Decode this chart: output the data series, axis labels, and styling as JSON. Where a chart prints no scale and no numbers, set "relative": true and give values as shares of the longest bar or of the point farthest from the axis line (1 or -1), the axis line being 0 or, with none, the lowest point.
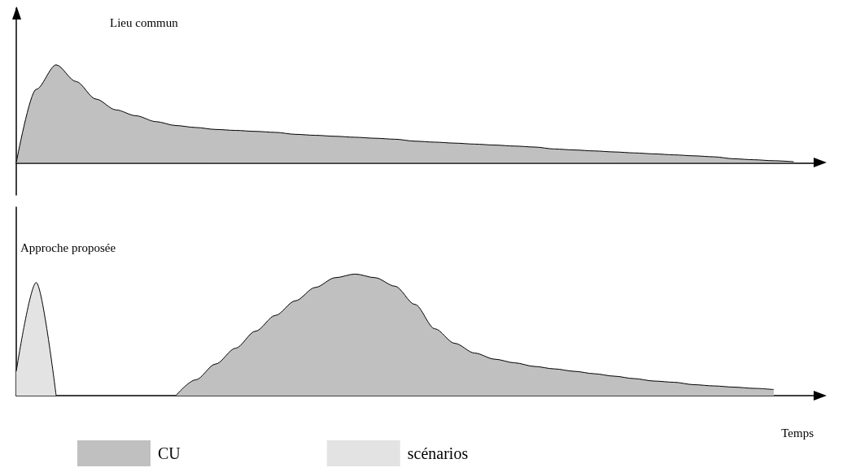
{
  "chart_data": [
    {
      "type": "area",
      "title": "Lieu commun",
      "relative": true,
      "categories": [
        null,
        null,
        null,
        null,
        null,
        null,
        null,
        null,
        null,
        null,
        null,
        null,
        null,
        null,
        null,
        null,
        null,
        null,
        null,
        null,
        null,
        null,
        null,
        null,
        null,
        null,
        null,
        null,
        null,
        null,
        null,
        null,
        null,
        null,
        null,
        null,
        null,
        null,
        null,
        null,
        null
      ],
      "series": [
        {
          "color": "#c0c0c0",
          "values": [
            0,
            0.75,
            1,
            0.83,
            0.65,
            0.54,
            0.48,
            0.42,
            0.38,
            0.36,
            0.34,
            0.33,
            0.32,
            0.31,
            0.29,
            0.28,
            0.27,
            0.26,
            0.25,
            0.24,
            0.22,
            0.21,
            0.2,
            0.19,
            0.18,
            0.17,
            0.16,
            0.14,
            0.13,
            0.12,
            0.11,
            0.1,
            0.09,
            0.08,
            0.07,
            0.06,
            0.04,
            0.03,
            0.02,
            0.01,
            null
          ]
        }
      ]
    },
    {
      "type": "area",
      "title": "Approche proposée",
      "xlabel": "Temps",
      "relative": true,
      "legend": "bottom",
      "categories": [
        null,
        null,
        null,
        null,
        null,
        null,
        null,
        null,
        null,
        null,
        null,
        null,
        null,
        null,
        null,
        null,
        null,
        null,
        null,
        null,
        null,
        null,
        null,
        null,
        null,
        null,
        null,
        null,
        null,
        null,
        null,
        null,
        null,
        null,
        null,
        null,
        null,
        null,
        null,
        null,
        null
      ],
      "series": [
        {
          "name": "CU",
          "color": "#c0c0c0",
          "values": [
            null,
            null,
            null,
            null,
            null,
            null,
            null,
            null,
            0,
            0.13,
            0.26,
            0.39,
            0.53,
            0.66,
            0.78,
            0.89,
            0.97,
            1,
            0.97,
            0.9,
            0.75,
            0.55,
            0.43,
            0.35,
            0.3,
            0.27,
            0.24,
            0.22,
            0.2,
            0.18,
            0.16,
            0.14,
            0.12,
            0.11,
            0.09,
            0.08,
            0.07,
            0.06,
            0.05,
            null,
            null
          ]
        },
        {
          "name": "scénarios",
          "color": "#e3e3e3",
          "values": [
            0.2,
            0.93,
            0,
            null,
            null,
            null,
            null,
            null,
            null,
            null,
            null,
            null,
            null,
            null,
            null,
            null,
            null,
            null,
            null,
            null,
            null,
            null,
            null,
            null,
            null,
            null,
            null,
            null,
            null,
            null,
            null,
            null,
            null,
            null,
            null,
            null,
            null,
            null,
            null,
            null,
            null
          ]
        }
      ]
    }
  ]
}
